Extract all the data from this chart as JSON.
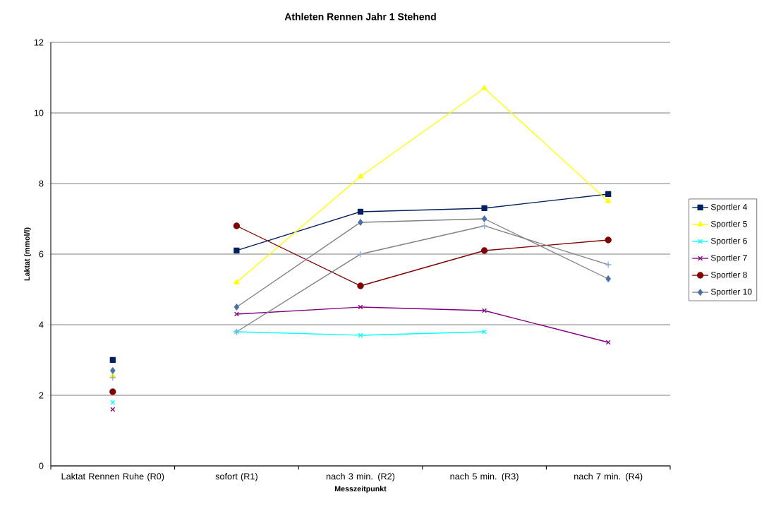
{
  "chart_data": {
    "type": "line",
    "title": "Athleten Rennen Jahr 1 Stehend",
    "xlabel": "Messzeitpunkt",
    "ylabel": "Laktat (mmol/l)",
    "categories": [
      "Laktat Rennen  Ruhe (R0)",
      "sofort (R1)",
      "nach 3 min. (R2)",
      "nach  5 min. (R3)",
      "nach 7 min. (R4)"
    ],
    "ylim": [
      0,
      12
    ],
    "yticks": [
      0,
      2,
      4,
      6,
      8,
      10,
      12
    ],
    "grid": "y",
    "legend": "right",
    "series": [
      {
        "name": "Sportler 4",
        "color": "#00205f",
        "marker": "square",
        "values": [
          null,
          6.1,
          7.2,
          7.3,
          7.7
        ]
      },
      {
        "name": "Sportler 5",
        "color": "#ffff00",
        "marker": "triangle",
        "values": [
          null,
          5.2,
          8.2,
          10.7,
          7.5
        ]
      },
      {
        "name": "Sportler 6",
        "color": "#00ffff",
        "marker": "cross",
        "values": [
          null,
          3.8,
          3.7,
          3.8,
          null
        ]
      },
      {
        "name": "Sportler 7",
        "color": "#800080",
        "marker": "cross",
        "values": [
          null,
          4.3,
          4.5,
          4.4,
          3.5
        ]
      },
      {
        "name": "Sportler 8",
        "color": "#800000",
        "marker": "circle",
        "values": [
          null,
          6.8,
          5.1,
          6.1,
          6.4
        ]
      },
      {
        "name": "Sportler 10",
        "color": "#808080",
        "colors": [
          null,
          "#4a72a8",
          "#4a72a8",
          "#4a72a8",
          "#4a72a8"
        ],
        "marker": "diamond",
        "values": [
          null,
          4.5,
          6.9,
          7.0,
          5.3
        ]
      },
      {
        "color": "#808080",
        "colors": [
          null,
          "#8ea9db",
          "#8ea9db",
          "#8ea9db",
          "#8ea9db"
        ],
        "marker": "plus",
        "values": [
          null,
          3.8,
          6.0,
          6.8,
          5.7
        ]
      },
      {
        "type": "scatter",
        "color": "#00205f",
        "marker": "square",
        "x": [
          "Laktat Rennen  Ruhe (R0)"
        ],
        "values": [
          3.0
        ]
      },
      {
        "type": "scatter",
        "color": "#ffff00",
        "marker": "triangle",
        "x": [
          "Laktat Rennen  Ruhe (R0)"
        ],
        "values": [
          2.55
        ]
      },
      {
        "type": "scatter",
        "color": "#00ffff",
        "marker": "cross",
        "x": [
          "Laktat Rennen  Ruhe (R0)"
        ],
        "values": [
          1.8
        ]
      },
      {
        "type": "scatter",
        "color": "#800080",
        "marker": "cross",
        "x": [
          "Laktat Rennen  Ruhe (R0)"
        ],
        "values": [
          1.6
        ]
      },
      {
        "type": "scatter",
        "color": "#800000",
        "marker": "circle",
        "x": [
          "Laktat Rennen  Ruhe (R0)"
        ],
        "values": [
          2.1
        ]
      },
      {
        "type": "scatter",
        "color": "#4a72a8",
        "marker": "diamond",
        "x": [
          "Laktat Rennen  Ruhe (R0)"
        ],
        "values": [
          2.7
        ]
      },
      {
        "type": "scatter",
        "color": "#8ea9db",
        "marker": "plus",
        "x": [
          "Laktat Rennen  Ruhe (R0)"
        ],
        "values": [
          2.5
        ]
      }
    ]
  }
}
